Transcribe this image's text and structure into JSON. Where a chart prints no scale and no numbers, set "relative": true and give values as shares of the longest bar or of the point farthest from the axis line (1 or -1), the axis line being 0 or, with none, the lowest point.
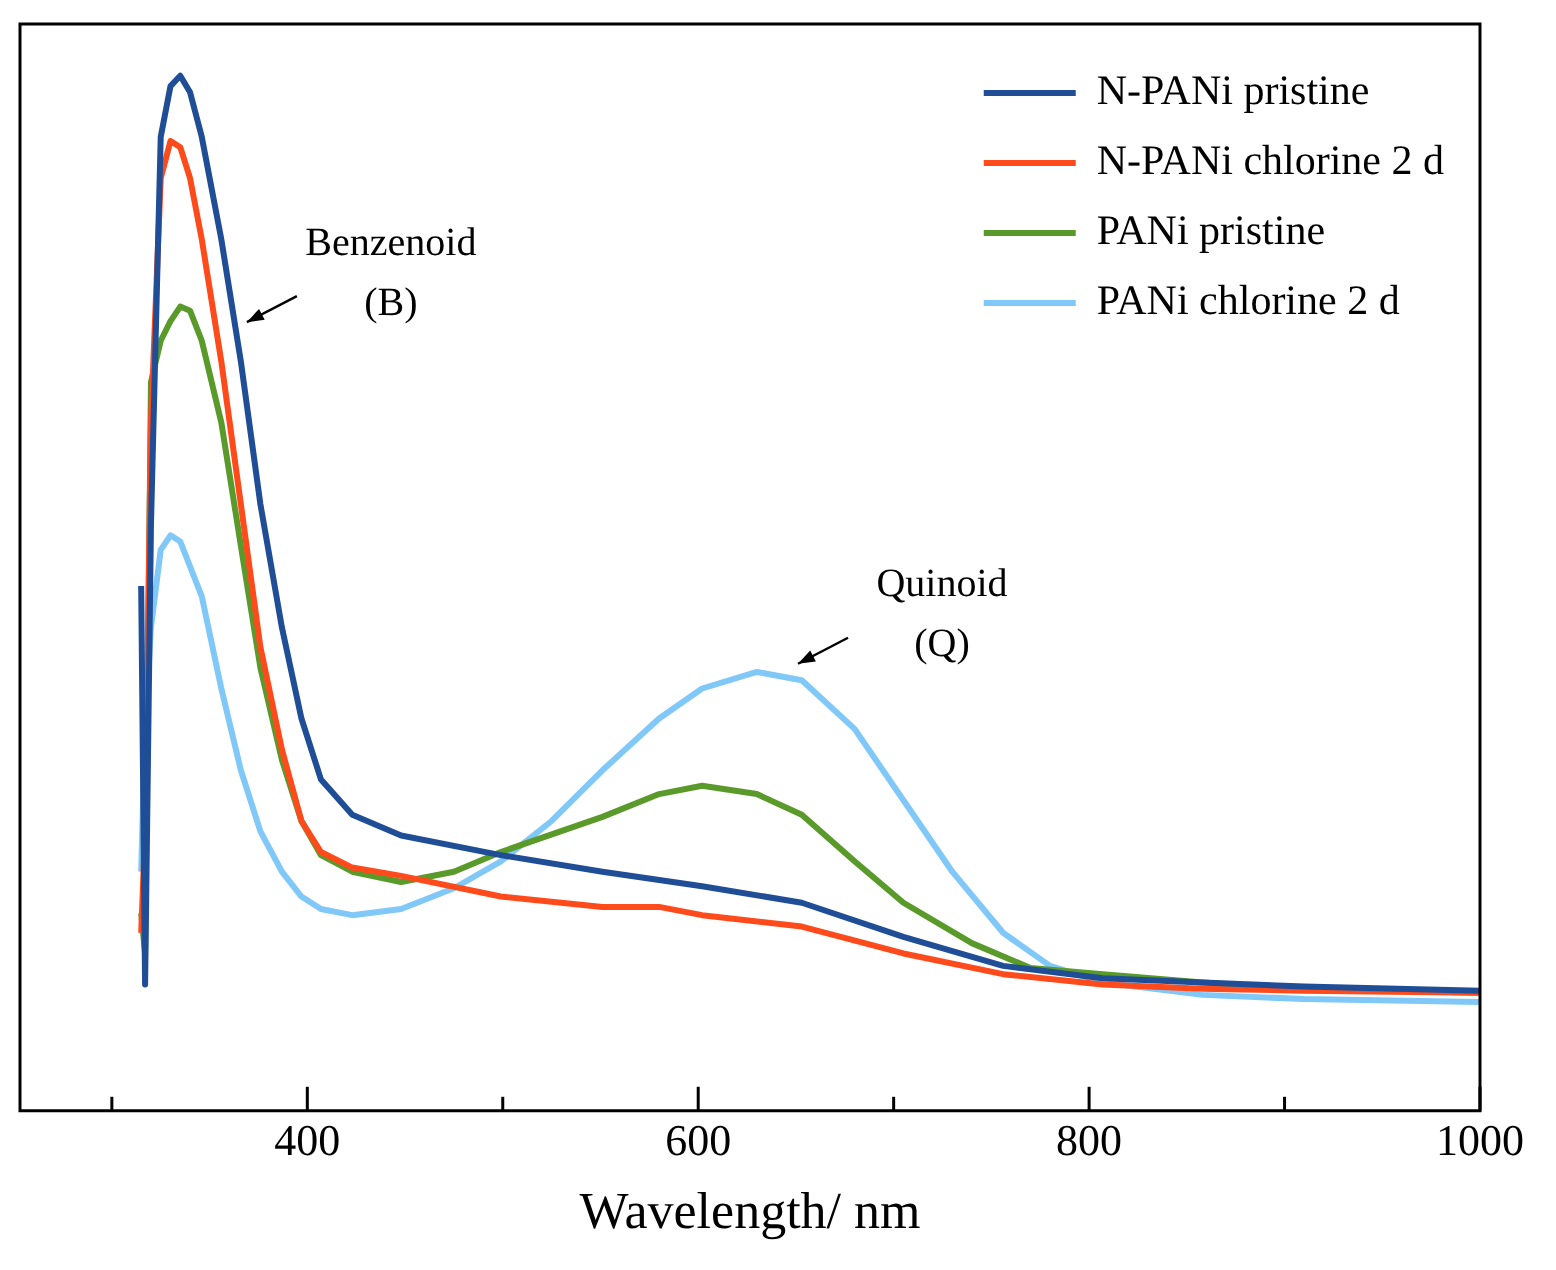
{
  "chart_data": {
    "type": "line",
    "xlabel": "Wavelength/ nm",
    "relative": true,
    "xlim": [
      253,
      1000
    ],
    "xticks": [
      {
        "value": 300,
        "label": null
      },
      400,
      {
        "value": 500,
        "label": null
      },
      600,
      {
        "value": 700,
        "label": null
      },
      800,
      {
        "value": 900,
        "label": null
      },
      1000
    ],
    "legend": "top right",
    "marker": "none",
    "line_style": "solid",
    "grid": false,
    "annotations": [
      {
        "text": "Benzenoid (B)",
        "x": 366,
        "y": 0.76
      },
      {
        "text": "Quinoid (Q)",
        "x": 648,
        "y": 0.43
      }
    ],
    "series": [
      {
        "name": "N-PANi pristine",
        "color": "#1f4e96",
        "x": [
          315,
          317,
          320,
          325,
          330,
          335,
          340,
          346,
          356,
          366,
          376,
          387,
          397,
          407,
          423,
          448,
          499,
          551,
          602,
          653,
          705,
          756,
          807,
          858,
          910,
          1000
        ],
        "values": [
          0.507,
          0.122,
          0.566,
          0.941,
          0.99,
          1.0,
          0.984,
          0.941,
          0.842,
          0.724,
          0.586,
          0.467,
          0.379,
          0.32,
          0.286,
          0.266,
          0.247,
          0.231,
          0.217,
          0.201,
          0.168,
          0.14,
          0.128,
          0.124,
          0.12,
          0.116
        ]
      },
      {
        "name": "N-PANi chlorine 2 d",
        "color": "#ff4a1c",
        "x": [
          315,
          317,
          320,
          325,
          330,
          335,
          340,
          346,
          356,
          366,
          376,
          387,
          397,
          407,
          423,
          448,
          499,
          551,
          580,
          602,
          653,
          705,
          756,
          807,
          858,
          910,
          1000
        ],
        "values": [
          0.172,
          0.27,
          0.665,
          0.901,
          0.937,
          0.931,
          0.901,
          0.842,
          0.724,
          0.586,
          0.448,
          0.349,
          0.28,
          0.25,
          0.235,
          0.227,
          0.207,
          0.197,
          0.197,
          0.189,
          0.178,
          0.152,
          0.132,
          0.122,
          0.118,
          0.116,
          0.114
        ]
      },
      {
        "name": "PANi pristine",
        "color": "#5a9a2a",
        "x": [
          315,
          317,
          320,
          325,
          330,
          335,
          340,
          346,
          356,
          366,
          376,
          387,
          397,
          407,
          423,
          448,
          475,
          499,
          551,
          580,
          602,
          630,
          653,
          680,
          705,
          740,
          770,
          807,
          858,
          910,
          1000
        ],
        "values": [
          0.191,
          0.152,
          0.704,
          0.744,
          0.763,
          0.777,
          0.773,
          0.744,
          0.665,
          0.546,
          0.428,
          0.339,
          0.28,
          0.247,
          0.231,
          0.221,
          0.231,
          0.25,
          0.284,
          0.306,
          0.314,
          0.306,
          0.286,
          0.241,
          0.201,
          0.162,
          0.138,
          0.132,
          0.124,
          0.118,
          0.114
        ]
      },
      {
        "name": "PANi chlorine 2 d",
        "color": "#80c8f8",
        "x": [
          315,
          317,
          320,
          325,
          330,
          335,
          346,
          356,
          366,
          376,
          387,
          397,
          407,
          423,
          448,
          475,
          499,
          525,
          551,
          580,
          602,
          630,
          653,
          680,
          705,
          730,
          756,
          780,
          807,
          858,
          910,
          1000
        ],
        "values": [
          0.231,
          0.369,
          0.467,
          0.542,
          0.556,
          0.55,
          0.497,
          0.408,
          0.329,
          0.27,
          0.231,
          0.207,
          0.195,
          0.189,
          0.195,
          0.215,
          0.241,
          0.28,
          0.329,
          0.379,
          0.408,
          0.424,
          0.416,
          0.369,
          0.3,
          0.231,
          0.172,
          0.14,
          0.124,
          0.112,
          0.108,
          0.105
        ]
      }
    ]
  }
}
